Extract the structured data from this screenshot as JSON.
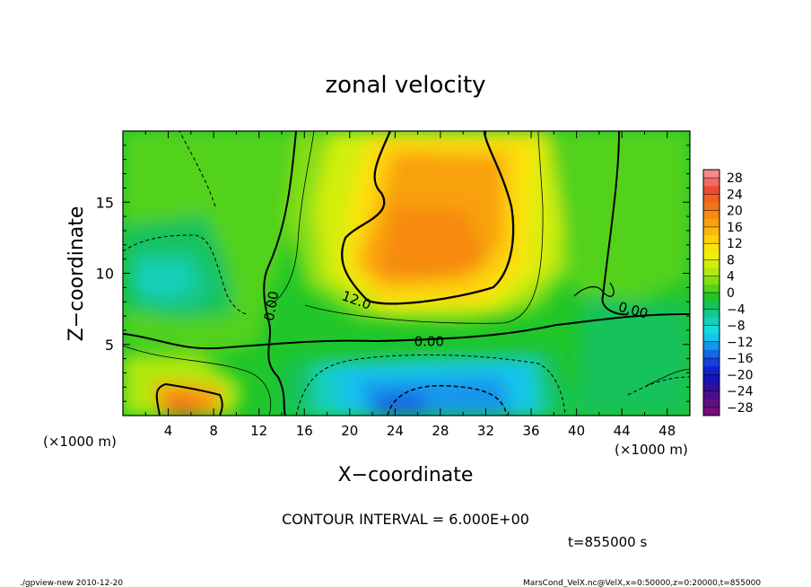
{
  "chart_data": {
    "type": "heatmap",
    "title": "zonal velocity",
    "xlabel": "X−coordinate",
    "ylabel": "Z−coordinate",
    "x_unit_label": "(×1000 m)",
    "x_unit_label_right": "(×1000 m)",
    "xlim": [
      0,
      50
    ],
    "ylim": [
      0,
      20
    ],
    "x_ticks": [
      4,
      8,
      12,
      16,
      20,
      24,
      28,
      32,
      36,
      40,
      44,
      48
    ],
    "y_ticks": [
      5,
      10,
      15
    ],
    "contour_interval_text": "CONTOUR INTERVAL = 6.000E+00",
    "time_text": "t=855000 s",
    "contour_labels": [
      {
        "text": "12.0",
        "x": 20.6,
        "y": 8.1
      },
      {
        "text": "0.00",
        "x": 27.0,
        "y": 5.2
      },
      {
        "text": "0.00",
        "x": 13.1,
        "y": 7.7
      },
      {
        "text": "0.00",
        "x": 45.0,
        "y": 7.4
      }
    ],
    "colorbar": {
      "labels": [
        "28",
        "24",
        "20",
        "16",
        "12",
        "8",
        "4",
        "0",
        "−4",
        "−8",
        "−12",
        "−16",
        "−20",
        "−24",
        "−28"
      ],
      "levels": [
        28,
        26,
        24,
        22,
        20,
        18,
        16,
        14,
        12,
        10,
        8,
        6,
        4,
        2,
        0,
        -2,
        -4,
        -6,
        -8,
        -10,
        -12,
        -14,
        -16,
        -18,
        -20,
        -22,
        -24,
        -26,
        -28,
        -30
      ],
      "colors": [
        "#f58a8a",
        "#f26b62",
        "#f04a36",
        "#f06020",
        "#f37414",
        "#f68a10",
        "#f9a00e",
        "#fbb80c",
        "#fcd00a",
        "#fae40a",
        "#eef00a",
        "#d2ee0c",
        "#b0e810",
        "#84de14",
        "#52d21a",
        "#20c62a",
        "#14c25a",
        "#12c88c",
        "#12d0bc",
        "#14dcdc",
        "#14c4ec",
        "#1496ec",
        "#1468e6",
        "#1440dc",
        "#1022d0",
        "#1412b8",
        "#3010a0",
        "#4a0e8a",
        "#601080",
        "#780c78"
      ]
    },
    "features": [
      {
        "name": "upper jet core",
        "x": [
          18,
          35
        ],
        "z": [
          7.5,
          19.5
        ],
        "max_value": 18
      },
      {
        "name": "lower reverse flow",
        "x": [
          19,
          38
        ],
        "z": [
          0,
          4.3
        ],
        "min_value": -14
      },
      {
        "name": "lower-left maximum",
        "x": [
          2,
          9
        ],
        "z": [
          0,
          2.5
        ],
        "max_value": 16
      },
      {
        "name": "upper-left reverse flow",
        "x": [
          1,
          11
        ],
        "z": [
          8,
          12
        ],
        "min_value": -8
      }
    ]
  },
  "footer": {
    "left": "./gpview-new   2010-12-20",
    "right": "MarsCond_VelX.nc@VelX,x=0:50000,z=0:20000,t=855000"
  }
}
